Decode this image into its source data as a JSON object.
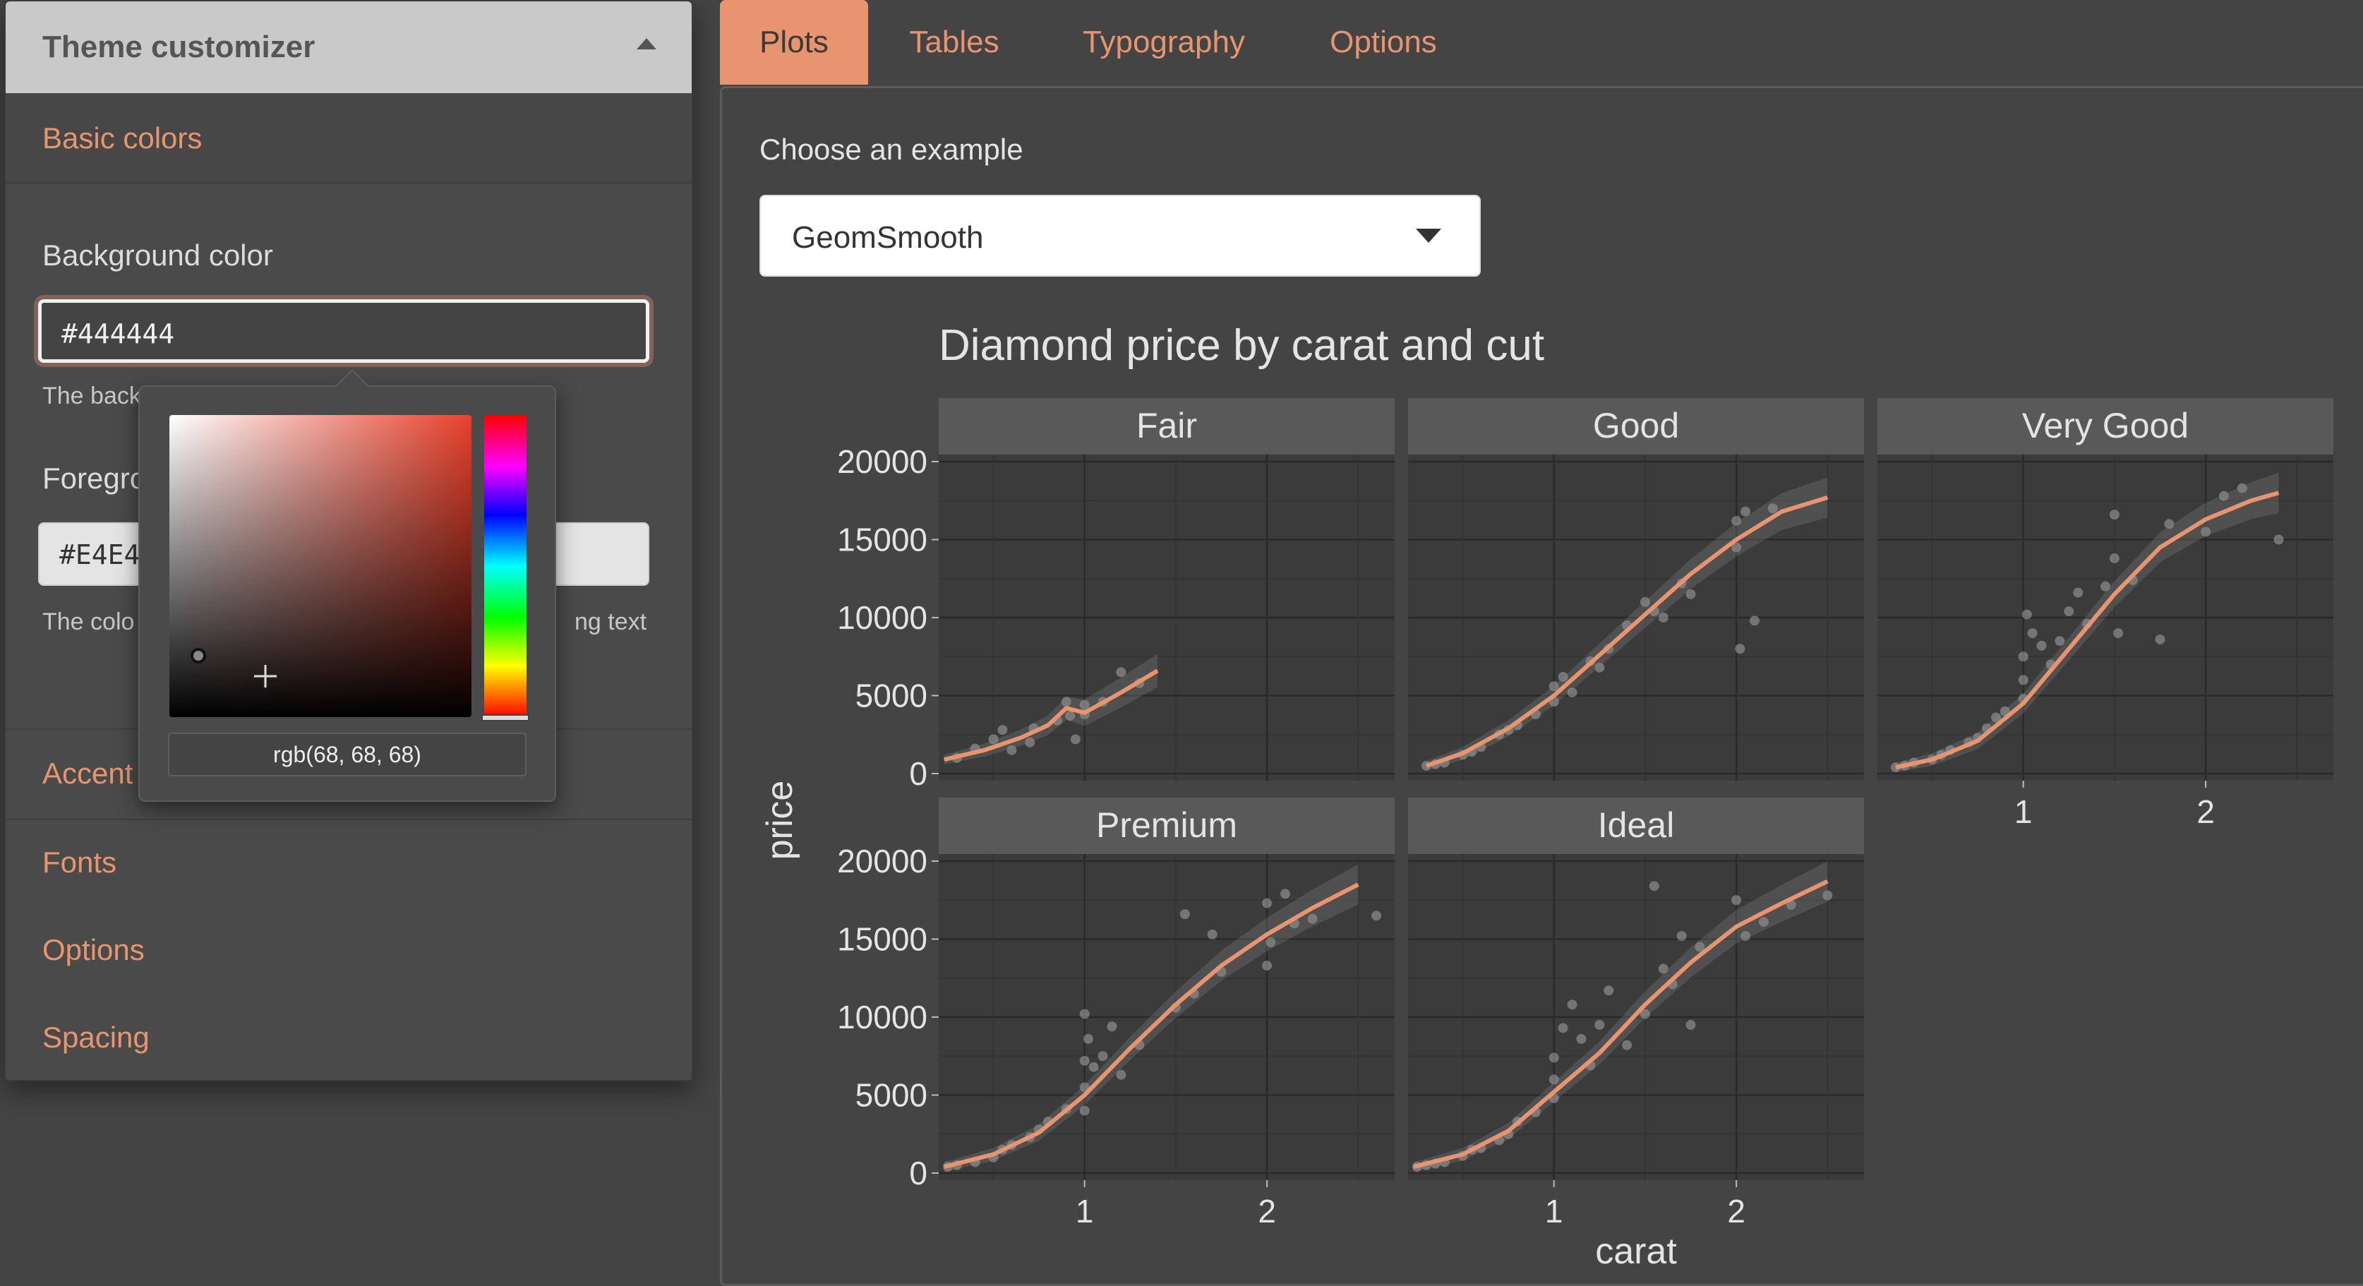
{
  "sidebar": {
    "title": "Theme customizer",
    "sections": [
      "Basic colors",
      "Accent",
      "Fonts",
      "Options",
      "Spacing"
    ],
    "background": {
      "label": "Background color",
      "value": "#444444",
      "help": "The back"
    },
    "foreground": {
      "label": "Foregro",
      "value": "#E4E4",
      "help_left": "The colo",
      "help_right": "ng text"
    },
    "picker": {
      "rgb": "rgb(68, 68, 68)"
    }
  },
  "tabs": [
    "Plots",
    "Tables",
    "Typography",
    "Options"
  ],
  "active_tab": "Plots",
  "main": {
    "choose_label": "Choose an example",
    "example_value": "GeomSmooth"
  },
  "colors": {
    "background": "#444444",
    "foreground": "#e4e4e4",
    "accent": "#e8956f",
    "panel_bg": "#3b3b3b",
    "strip_bg": "#595959"
  },
  "chart_data": {
    "type": "scatter",
    "title": "Diamond price by carat and cut",
    "xlabel": "carat",
    "ylabel": "price",
    "ylim": [
      0,
      20000
    ],
    "xlim": [
      0.2,
      2.7
    ],
    "yticks": [
      0,
      5000,
      10000,
      15000,
      20000
    ],
    "xticks": [
      1,
      2
    ],
    "facets": [
      {
        "name": "Fair",
        "smooth": [
          [
            0.23,
            900
          ],
          [
            0.45,
            1500
          ],
          [
            0.65,
            2300
          ],
          [
            0.8,
            3100
          ],
          [
            0.9,
            4200
          ],
          [
            1.0,
            3900
          ],
          [
            1.2,
            5200
          ],
          [
            1.4,
            6600
          ]
        ],
        "points": [
          [
            0.3,
            1000
          ],
          [
            0.4,
            1600
          ],
          [
            0.5,
            2200
          ],
          [
            0.55,
            2800
          ],
          [
            0.6,
            1500
          ],
          [
            0.7,
            2000
          ],
          [
            0.72,
            2900
          ],
          [
            0.85,
            3400
          ],
          [
            0.9,
            4600
          ],
          [
            0.92,
            3700
          ],
          [
            0.95,
            2200
          ],
          [
            1.0,
            3800
          ],
          [
            1.0,
            4400
          ],
          [
            1.1,
            4600
          ],
          [
            1.2,
            6500
          ],
          [
            1.3,
            5800
          ]
        ]
      },
      {
        "name": "Good",
        "smooth": [
          [
            0.3,
            500
          ],
          [
            0.5,
            1300
          ],
          [
            0.75,
            2900
          ],
          [
            1.0,
            5000
          ],
          [
            1.25,
            7600
          ],
          [
            1.5,
            10200
          ],
          [
            1.75,
            12800
          ],
          [
            2.0,
            15000
          ],
          [
            2.25,
            16800
          ],
          [
            2.5,
            17700
          ]
        ],
        "points": [
          [
            0.3,
            500
          ],
          [
            0.35,
            600
          ],
          [
            0.4,
            700
          ],
          [
            0.5,
            1200
          ],
          [
            0.55,
            1400
          ],
          [
            0.6,
            1700
          ],
          [
            0.7,
            2500
          ],
          [
            0.75,
            2800
          ],
          [
            0.8,
            3100
          ],
          [
            0.9,
            3800
          ],
          [
            1.0,
            4600
          ],
          [
            1.0,
            5600
          ],
          [
            1.05,
            6200
          ],
          [
            1.1,
            5200
          ],
          [
            1.2,
            7200
          ],
          [
            1.25,
            6800
          ],
          [
            1.3,
            8000
          ],
          [
            1.4,
            9500
          ],
          [
            1.5,
            11000
          ],
          [
            1.55,
            10400
          ],
          [
            1.6,
            10000
          ],
          [
            1.7,
            12200
          ],
          [
            1.75,
            11500
          ],
          [
            2.0,
            14500
          ],
          [
            2.0,
            16200
          ],
          [
            2.02,
            8000
          ],
          [
            2.05,
            16800
          ],
          [
            2.1,
            9800
          ],
          [
            2.2,
            17000
          ]
        ]
      },
      {
        "name": "Very Good",
        "smooth": [
          [
            0.3,
            400
          ],
          [
            0.5,
            900
          ],
          [
            0.75,
            2100
          ],
          [
            1.0,
            4500
          ],
          [
            1.25,
            8000
          ],
          [
            1.5,
            11500
          ],
          [
            1.75,
            14500
          ],
          [
            2.0,
            16300
          ],
          [
            2.25,
            17500
          ],
          [
            2.4,
            18000
          ]
        ],
        "points": [
          [
            0.3,
            400
          ],
          [
            0.35,
            500
          ],
          [
            0.4,
            700
          ],
          [
            0.5,
            900
          ],
          [
            0.55,
            1200
          ],
          [
            0.6,
            1500
          ],
          [
            0.7,
            2000
          ],
          [
            0.75,
            2300
          ],
          [
            0.8,
            2900
          ],
          [
            0.85,
            3600
          ],
          [
            0.9,
            4000
          ],
          [
            1.0,
            4800
          ],
          [
            1.0,
            6000
          ],
          [
            1.0,
            7500
          ],
          [
            1.02,
            10200
          ],
          [
            1.05,
            9000
          ],
          [
            1.1,
            8200
          ],
          [
            1.15,
            7000
          ],
          [
            1.2,
            8500
          ],
          [
            1.25,
            10400
          ],
          [
            1.3,
            11600
          ],
          [
            1.35,
            9600
          ],
          [
            1.45,
            12000
          ],
          [
            1.5,
            13800
          ],
          [
            1.5,
            16600
          ],
          [
            1.52,
            9000
          ],
          [
            1.6,
            12400
          ],
          [
            1.75,
            8600
          ],
          [
            1.8,
            16000
          ],
          [
            2.0,
            15500
          ],
          [
            2.1,
            17800
          ],
          [
            2.2,
            18300
          ],
          [
            2.4,
            15000
          ]
        ]
      },
      {
        "name": "Premium",
        "smooth": [
          [
            0.23,
            400
          ],
          [
            0.5,
            1200
          ],
          [
            0.75,
            2600
          ],
          [
            1.0,
            5000
          ],
          [
            1.25,
            8000
          ],
          [
            1.5,
            10800
          ],
          [
            1.75,
            13300
          ],
          [
            2.0,
            15300
          ],
          [
            2.25,
            17000
          ],
          [
            2.5,
            18500
          ]
        ],
        "points": [
          [
            0.25,
            400
          ],
          [
            0.3,
            500
          ],
          [
            0.4,
            700
          ],
          [
            0.5,
            1000
          ],
          [
            0.55,
            1500
          ],
          [
            0.6,
            1800
          ],
          [
            0.7,
            2300
          ],
          [
            0.75,
            2800
          ],
          [
            0.8,
            3300
          ],
          [
            0.9,
            4100
          ],
          [
            1.0,
            4000
          ],
          [
            1.0,
            5500
          ],
          [
            1.0,
            7200
          ],
          [
            1.0,
            10200
          ],
          [
            1.02,
            8600
          ],
          [
            1.05,
            6800
          ],
          [
            1.1,
            7500
          ],
          [
            1.15,
            9400
          ],
          [
            1.2,
            6300
          ],
          [
            1.3,
            8200
          ],
          [
            1.5,
            10600
          ],
          [
            1.55,
            16600
          ],
          [
            1.6,
            11500
          ],
          [
            1.7,
            15300
          ],
          [
            1.75,
            12900
          ],
          [
            2.0,
            17300
          ],
          [
            2.0,
            13300
          ],
          [
            2.02,
            14800
          ],
          [
            2.1,
            17900
          ],
          [
            2.15,
            16000
          ],
          [
            2.25,
            16300
          ],
          [
            2.6,
            16500
          ]
        ]
      },
      {
        "name": "Ideal",
        "smooth": [
          [
            0.23,
            400
          ],
          [
            0.5,
            1200
          ],
          [
            0.75,
            2700
          ],
          [
            1.0,
            5200
          ],
          [
            1.25,
            7700
          ],
          [
            1.5,
            10800
          ],
          [
            1.75,
            13500
          ],
          [
            2.0,
            15800
          ],
          [
            2.25,
            17300
          ],
          [
            2.5,
            18700
          ]
        ],
        "points": [
          [
            0.25,
            400
          ],
          [
            0.3,
            500
          ],
          [
            0.35,
            600
          ],
          [
            0.4,
            700
          ],
          [
            0.5,
            1100
          ],
          [
            0.55,
            1500
          ],
          [
            0.6,
            1600
          ],
          [
            0.7,
            2100
          ],
          [
            0.75,
            2500
          ],
          [
            0.8,
            3300
          ],
          [
            0.9,
            3900
          ],
          [
            1.0,
            4800
          ],
          [
            1.0,
            6000
          ],
          [
            1.0,
            7400
          ],
          [
            1.05,
            9300
          ],
          [
            1.1,
            10800
          ],
          [
            1.15,
            8600
          ],
          [
            1.2,
            6900
          ],
          [
            1.25,
            9500
          ],
          [
            1.3,
            11700
          ],
          [
            1.4,
            8200
          ],
          [
            1.5,
            10200
          ],
          [
            1.55,
            18400
          ],
          [
            1.6,
            13100
          ],
          [
            1.65,
            12100
          ],
          [
            1.7,
            15200
          ],
          [
            1.75,
            9500
          ],
          [
            1.8,
            14500
          ],
          [
            2.0,
            17500
          ],
          [
            2.05,
            15200
          ],
          [
            2.15,
            16100
          ],
          [
            2.3,
            17200
          ],
          [
            2.5,
            17800
          ]
        ]
      }
    ]
  }
}
